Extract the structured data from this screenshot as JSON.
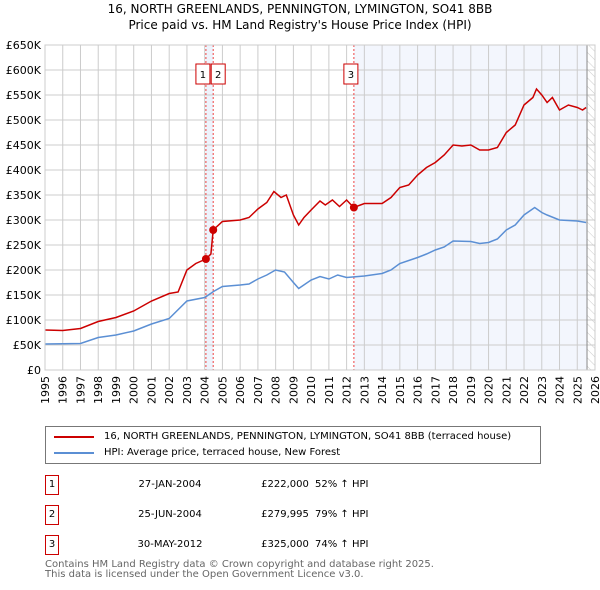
{
  "chart_data": {
    "type": "line",
    "title": "16, NORTH GREENLANDS, PENNINGTON, LYMINGTON, SO41 8BB",
    "subtitle": "Price paid vs. HM Land Registry's House Price Index (HPI)",
    "xlim": [
      1995,
      2026
    ],
    "ylim": [
      0,
      650000
    ],
    "y_ticks": [
      0,
      50000,
      100000,
      150000,
      200000,
      250000,
      300000,
      350000,
      400000,
      450000,
      500000,
      550000,
      600000,
      650000
    ],
    "y_tick_labels": [
      "£0",
      "£50K",
      "£100K",
      "£150K",
      "£200K",
      "£250K",
      "£300K",
      "£350K",
      "£400K",
      "£450K",
      "£500K",
      "£550K",
      "£600K",
      "£650K"
    ],
    "x_ticks": [
      1995,
      1996,
      1997,
      1998,
      1999,
      2000,
      2001,
      2002,
      2003,
      2004,
      2005,
      2006,
      2007,
      2008,
      2009,
      2010,
      2011,
      2012,
      2013,
      2014,
      2015,
      2016,
      2017,
      2018,
      2019,
      2020,
      2021,
      2022,
      2023,
      2024,
      2025,
      2026
    ],
    "grid": true,
    "series": [
      {
        "name": "16, NORTH GREENLANDS, PENNINGTON, LYMINGTON, SO41 8BB (terraced house)",
        "color": "#cc0000",
        "x": [
          1995,
          1996,
          1997,
          1998,
          1999,
          2000,
          2001,
          2002,
          2002.5,
          2003,
          2003.5,
          2004.07,
          2004.35,
          2004.48,
          2005,
          2006,
          2006.5,
          2007,
          2007.5,
          2007.9,
          2008.3,
          2008.6,
          2009,
          2009.3,
          2009.6,
          2010,
          2010.5,
          2010.8,
          2011.2,
          2011.6,
          2012,
          2012.4,
          2013,
          2014,
          2014.5,
          2015,
          2015.5,
          2016,
          2016.5,
          2017,
          2017.5,
          2018,
          2018.5,
          2019,
          2019.5,
          2020,
          2020.5,
          2021,
          2021.5,
          2022,
          2022.5,
          2022.7,
          2023,
          2023.3,
          2023.6,
          2024,
          2024.5,
          2025,
          2025.3,
          2025.5
        ],
        "y": [
          80000,
          79000,
          83000,
          97000,
          105000,
          118000,
          138000,
          153000,
          156000,
          200000,
          213000,
          222000,
          232000,
          279995,
          297000,
          300000,
          305000,
          322000,
          335000,
          357000,
          345000,
          350000,
          310000,
          290000,
          305000,
          320000,
          338000,
          330000,
          340000,
          327000,
          340000,
          325000,
          333000,
          333000,
          345000,
          365000,
          370000,
          390000,
          405000,
          415000,
          430000,
          450000,
          448000,
          450000,
          440000,
          440000,
          445000,
          475000,
          490000,
          530000,
          545000,
          562000,
          550000,
          535000,
          545000,
          520000,
          530000,
          525000,
          520000,
          525000
        ]
      },
      {
        "name": "HPI: Average price, terraced house, New Forest",
        "color": "#5b8fd4",
        "x": [
          1995,
          1997,
          1998,
          1999,
          2000,
          2001,
          2002,
          2003,
          2004,
          2004.5,
          2005,
          2006,
          2006.5,
          2007,
          2007.5,
          2008,
          2008.5,
          2009,
          2009.3,
          2010,
          2010.5,
          2011,
          2011.5,
          2012,
          2013,
          2014,
          2014.5,
          2015,
          2016,
          2016.5,
          2017,
          2017.5,
          2018,
          2019,
          2019.5,
          2020,
          2020.5,
          2021,
          2021.5,
          2022,
          2022.6,
          2023,
          2023.3,
          2024,
          2025,
          2025.5
        ],
        "y": [
          52000,
          53000,
          65000,
          70000,
          78000,
          92000,
          103000,
          138000,
          145000,
          157000,
          167000,
          170000,
          172000,
          182000,
          190000,
          200000,
          196000,
          175000,
          163000,
          180000,
          187000,
          182000,
          190000,
          185000,
          188000,
          193000,
          200000,
          213000,
          225000,
          232000,
          240000,
          246000,
          258000,
          257000,
          253000,
          255000,
          262000,
          280000,
          290000,
          310000,
          325000,
          315000,
          310000,
          300000,
          298000,
          295000
        ]
      }
    ],
    "transactions": [
      {
        "id": "1",
        "x": 2004.07,
        "date": "27-JAN-2004",
        "price": "£222,000",
        "value": 222000,
        "hpi": "52% ↑ HPI"
      },
      {
        "id": "2",
        "x": 2004.48,
        "date": "25-JUN-2004",
        "price": "£279,995",
        "value": 279995,
        "hpi": "79% ↑ HPI"
      },
      {
        "id": "3",
        "x": 2012.41,
        "date": "30-MAY-2012",
        "price": "£325,000",
        "value": 325000,
        "hpi": "74% ↑ HPI"
      }
    ],
    "data_end": 2025.55
  },
  "footer": {
    "line1": "Contains HM Land Registry data © Crown copyright and database right 2025.",
    "line2": "This data is licensed under the Open Government Licence v3.0."
  }
}
